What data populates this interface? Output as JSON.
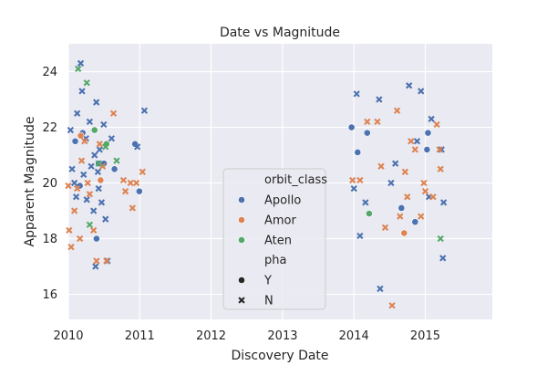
{
  "chart_data": {
    "type": "scatter",
    "title": "Date vs Magnitude",
    "xlabel": "Discovery Date",
    "ylabel": "Apparent Magnitude",
    "xlim": [
      "2010-01-01",
      "2015-12-10"
    ],
    "ylim": [
      15.1,
      25.0
    ],
    "x_ticks": [
      "2010",
      "2011",
      "2012",
      "2013",
      "2014",
      "2015"
    ],
    "y_ticks": [
      "16",
      "18",
      "20",
      "22",
      "24"
    ],
    "grid": true,
    "legend": {
      "placement": "lower-center",
      "hue_title": "orbit_class",
      "hue": [
        {
          "label": "Apollo",
          "color": "#4c72b0"
        },
        {
          "label": "Amor",
          "color": "#dd8452"
        },
        {
          "label": "Aten",
          "color": "#55a868"
        }
      ],
      "style_title": "pha",
      "style": [
        {
          "label": "Y",
          "marker": "circle"
        },
        {
          "label": "N",
          "marker": "x"
        }
      ]
    },
    "series": [
      {
        "hue": "Apollo",
        "style": "Y",
        "points": [
          [
            "2010-02-05",
            21.5
          ],
          [
            "2010-03-01",
            19.9
          ],
          [
            "2010-03-15",
            21.8
          ],
          [
            "2010-05-25",
            18.0
          ],
          [
            "2010-06-05",
            20.7
          ],
          [
            "2010-07-02",
            20.7
          ],
          [
            "2010-08-25",
            20.5
          ],
          [
            "2010-12-08",
            21.4
          ],
          [
            "2010-12-30",
            19.7
          ],
          [
            "2013-12-20",
            22.0
          ],
          [
            "2014-01-20",
            21.1
          ],
          [
            "2014-03-10",
            21.8
          ],
          [
            "2014-09-01",
            19.1
          ],
          [
            "2014-11-10",
            18.6
          ],
          [
            "2015-01-10",
            21.2
          ],
          [
            "2015-01-15",
            21.8
          ]
        ]
      },
      {
        "hue": "Apollo",
        "style": "N",
        "points": [
          [
            "2010-01-12",
            21.9
          ],
          [
            "2010-01-20",
            20.5
          ],
          [
            "2010-02-01",
            20.0
          ],
          [
            "2010-02-10",
            19.5
          ],
          [
            "2010-02-15",
            22.5
          ],
          [
            "2010-03-05",
            24.3
          ],
          [
            "2010-03-12",
            23.3
          ],
          [
            "2010-03-20",
            20.3
          ],
          [
            "2010-04-01",
            21.6
          ],
          [
            "2010-04-05",
            19.4
          ],
          [
            "2010-04-20",
            22.2
          ],
          [
            "2010-04-28",
            20.6
          ],
          [
            "2010-05-10",
            19.0
          ],
          [
            "2010-05-15",
            21.0
          ],
          [
            "2010-05-20",
            17.0
          ],
          [
            "2010-05-24",
            22.9
          ],
          [
            "2010-06-01",
            20.4
          ],
          [
            "2010-06-05",
            19.8
          ],
          [
            "2010-06-10",
            21.2
          ],
          [
            "2010-06-20",
            19.3
          ],
          [
            "2010-07-01",
            22.1
          ],
          [
            "2010-07-10",
            18.7
          ],
          [
            "2010-07-20",
            17.2
          ],
          [
            "2010-08-10",
            21.6
          ],
          [
            "2010-12-20",
            21.3
          ],
          [
            "2011-01-25",
            22.6
          ],
          [
            "2014-01-01",
            19.8
          ],
          [
            "2014-01-15",
            23.2
          ],
          [
            "2014-02-01",
            18.1
          ],
          [
            "2014-03-01",
            19.3
          ],
          [
            "2014-05-10",
            23.0
          ],
          [
            "2014-05-15",
            16.2
          ],
          [
            "2014-07-10",
            20.0
          ],
          [
            "2014-08-01",
            20.7
          ],
          [
            "2014-10-10",
            23.5
          ],
          [
            "2014-11-20",
            21.5
          ],
          [
            "2014-12-10",
            23.3
          ],
          [
            "2015-01-20",
            19.5
          ],
          [
            "2015-02-01",
            22.3
          ],
          [
            "2015-03-25",
            21.2
          ],
          [
            "2015-04-01",
            17.3
          ],
          [
            "2015-04-05",
            19.3
          ]
        ]
      },
      {
        "hue": "Amor",
        "style": "Y",
        "points": [
          [
            "2010-03-05",
            21.7
          ],
          [
            "2010-06-15",
            20.1
          ],
          [
            "2014-09-15",
            18.2
          ]
        ]
      },
      {
        "hue": "Amor",
        "style": "N",
        "points": [
          [
            "2010-01-01",
            19.9
          ],
          [
            "2010-01-05",
            18.3
          ],
          [
            "2010-01-15",
            17.7
          ],
          [
            "2010-02-01",
            19.0
          ],
          [
            "2010-02-15",
            19.8
          ],
          [
            "2010-03-01",
            18.0
          ],
          [
            "2010-03-10",
            20.8
          ],
          [
            "2010-03-25",
            21.5
          ],
          [
            "2010-04-10",
            20.0
          ],
          [
            "2010-04-20",
            19.6
          ],
          [
            "2010-05-10",
            18.3
          ],
          [
            "2010-05-25",
            17.2
          ],
          [
            "2010-06-10",
            21.4
          ],
          [
            "2010-06-25",
            20.6
          ],
          [
            "2010-07-15",
            17.2
          ],
          [
            "2010-08-20",
            22.5
          ],
          [
            "2010-10-10",
            20.1
          ],
          [
            "2010-10-20",
            19.7
          ],
          [
            "2010-11-15",
            20.0
          ],
          [
            "2010-11-25",
            19.1
          ],
          [
            "2010-12-15",
            20.0
          ],
          [
            "2011-01-15",
            20.4
          ],
          [
            "2013-12-25",
            20.1
          ],
          [
            "2014-02-01",
            20.1
          ],
          [
            "2014-03-10",
            22.2
          ],
          [
            "2014-05-01",
            22.2
          ],
          [
            "2014-05-20",
            20.6
          ],
          [
            "2014-06-10",
            18.4
          ],
          [
            "2014-07-15",
            15.6
          ],
          [
            "2014-08-10",
            22.6
          ],
          [
            "2014-08-25",
            18.8
          ],
          [
            "2014-09-20",
            20.4
          ],
          [
            "2014-10-01",
            19.5
          ],
          [
            "2014-10-20",
            21.5
          ],
          [
            "2014-11-10",
            21.2
          ],
          [
            "2014-12-10",
            18.8
          ],
          [
            "2014-12-25",
            20.0
          ],
          [
            "2015-01-01",
            19.7
          ],
          [
            "2015-02-10",
            19.5
          ],
          [
            "2015-03-01",
            22.1
          ],
          [
            "2015-03-15",
            21.2
          ],
          [
            "2015-03-20",
            20.5
          ]
        ]
      },
      {
        "hue": "Aten",
        "style": "Y",
        "points": [
          [
            "2010-05-15",
            21.9
          ],
          [
            "2010-07-15",
            21.4
          ],
          [
            "2014-03-20",
            18.9
          ]
        ]
      },
      {
        "hue": "Aten",
        "style": "N",
        "points": [
          [
            "2010-02-20",
            24.1
          ],
          [
            "2010-04-05",
            23.6
          ],
          [
            "2010-04-20",
            18.5
          ],
          [
            "2010-06-05",
            20.7
          ],
          [
            "2010-07-10",
            21.3
          ],
          [
            "2010-09-05",
            20.8
          ],
          [
            "2015-03-20",
            18.0
          ]
        ]
      }
    ]
  }
}
